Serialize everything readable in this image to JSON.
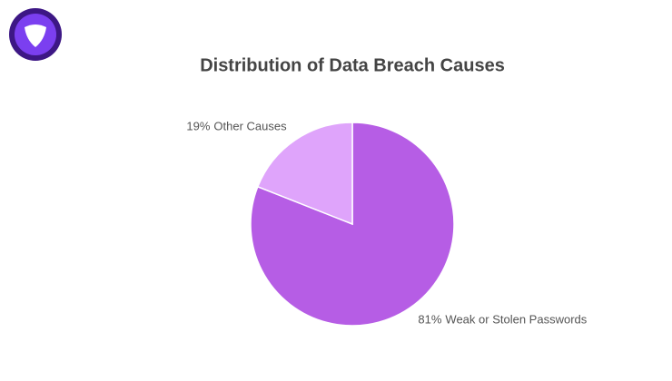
{
  "chart_data": {
    "type": "pie",
    "title": "Distribution of Data Breach Causes",
    "categories": [
      "Weak or Stolen Passwords",
      "Other Causes"
    ],
    "values": [
      81,
      19
    ],
    "value_labels": [
      "81%",
      "19%"
    ],
    "colors": [
      "#b65de5",
      "#dfa4fb"
    ]
  }
}
